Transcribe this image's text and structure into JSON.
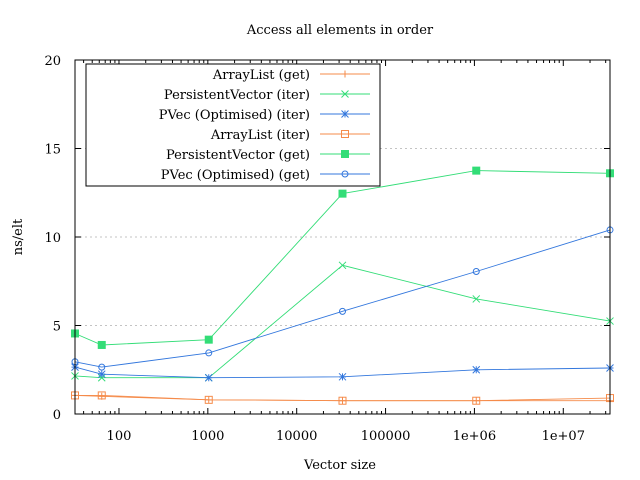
{
  "chart_data": {
    "type": "line",
    "title": "Access all elements in order",
    "xlabel": "Vector size",
    "ylabel": "ns/elt",
    "x_scale": "log",
    "xlim": [
      32,
      33554432
    ],
    "ylim": [
      0,
      20
    ],
    "y_ticks": [
      0,
      5,
      10,
      15,
      20
    ],
    "y_tick_labels": [
      "0",
      "5",
      "10",
      "15",
      "20"
    ],
    "x_ticks": [
      100,
      1000,
      10000,
      100000,
      1000000,
      10000000
    ],
    "x_tick_labels": [
      "100",
      "1000",
      "10000",
      "100000",
      "1e+06",
      "1e+07"
    ],
    "grid": "y-dashed",
    "legend_position": "top-left",
    "x": [
      32,
      64,
      1024,
      32768,
      1048576,
      33554432
    ],
    "series": [
      {
        "name": "ArrayList (get)",
        "color": "#f58b4a",
        "marker": "plus",
        "values": [
          1.05,
          1.0,
          0.8,
          0.75,
          0.75,
          0.75
        ]
      },
      {
        "name": "PersistentVector (iter)",
        "color": "#33dd77",
        "marker": "cross",
        "values": [
          2.15,
          2.05,
          2.05,
          8.4,
          6.5,
          5.25
        ]
      },
      {
        "name": "PVec (Optimised) (iter)",
        "color": "#3377dd",
        "marker": "star",
        "values": [
          2.65,
          2.25,
          2.05,
          2.1,
          2.5,
          2.6
        ]
      },
      {
        "name": "ArrayList (iter)",
        "color": "#f58b4a",
        "marker": "square-open",
        "values": [
          1.05,
          1.05,
          0.8,
          0.75,
          0.75,
          0.9
        ]
      },
      {
        "name": "PersistentVector (get)",
        "color": "#33dd77",
        "marker": "square-filled",
        "values": [
          4.55,
          3.9,
          4.2,
          12.45,
          13.75,
          13.6
        ]
      },
      {
        "name": "PVec (Optimised) (get)",
        "color": "#3377dd",
        "marker": "circle-open",
        "values": [
          2.95,
          2.65,
          3.45,
          5.8,
          8.05,
          10.4
        ]
      }
    ]
  }
}
